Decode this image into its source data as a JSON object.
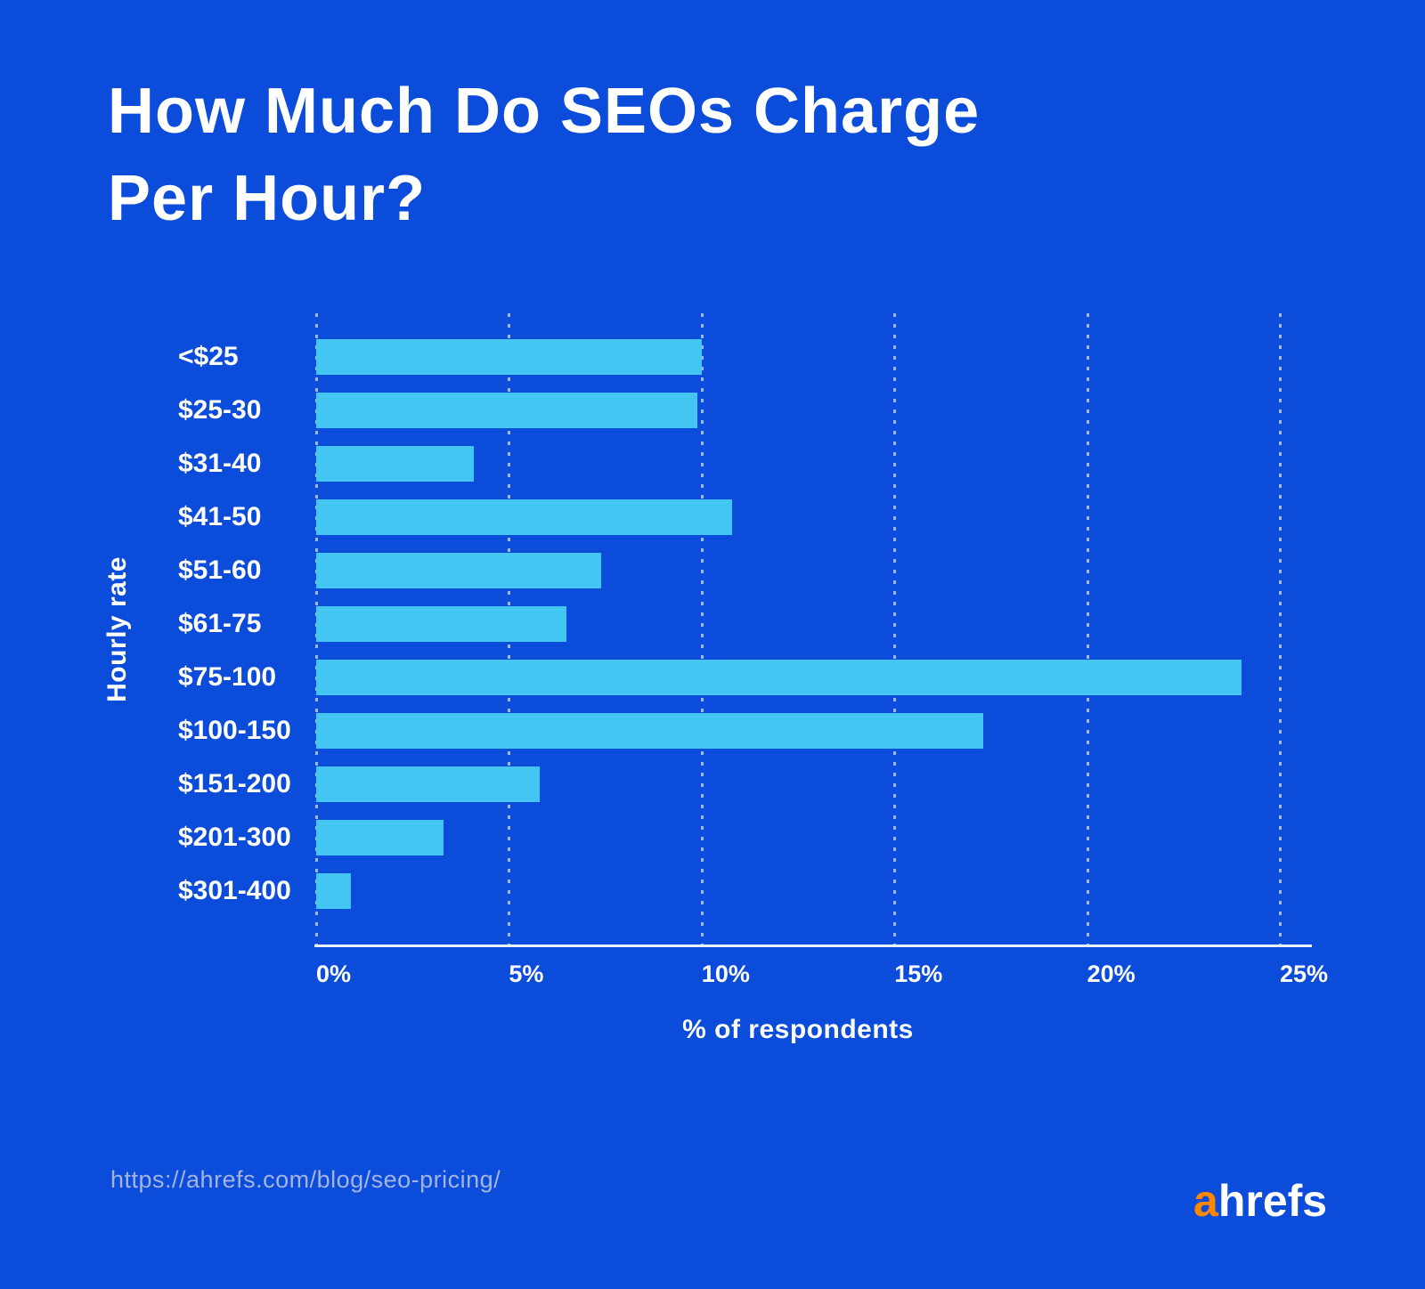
{
  "header": {
    "title_line1": "How Much Do SEOs Charge",
    "title_line2": "Per Hour?"
  },
  "chart_data": {
    "type": "bar",
    "orientation": "horizontal",
    "title": "How Much Do SEOs Charge Per Hour?",
    "categories": [
      "<$25",
      "$25-30",
      "$31-40",
      "$41-50",
      "$51-60",
      "$61-75",
      "$75-100",
      "$100-150",
      "$151-200",
      "$201-300",
      "$301-400"
    ],
    "values": [
      10.0,
      9.9,
      4.1,
      10.8,
      7.4,
      6.5,
      24.0,
      17.3,
      5.8,
      3.3,
      0.9
    ],
    "xlabel": "% of respondents",
    "ylabel": "Hourly rate",
    "xlim": [
      0,
      25
    ],
    "x_ticks": [
      "0%",
      "5%",
      "10%",
      "15%",
      "20%",
      "25%"
    ],
    "grid": "vertical-dashed",
    "legend": "none",
    "colors": {
      "background": "#0B4CDB",
      "bar": "#43C5F1",
      "axis_line": "#ECF1FA",
      "grid_line": "rgba(255,255,255,0.60)",
      "text": "#FFFFFF",
      "source_text": "#A4B4DF",
      "logo_accent": "#FF8800"
    }
  },
  "footer": {
    "source_url": "https://ahrefs.com/blog/seo-pricing/",
    "logo_prefix": "a",
    "logo_suffix": "hrefs"
  }
}
